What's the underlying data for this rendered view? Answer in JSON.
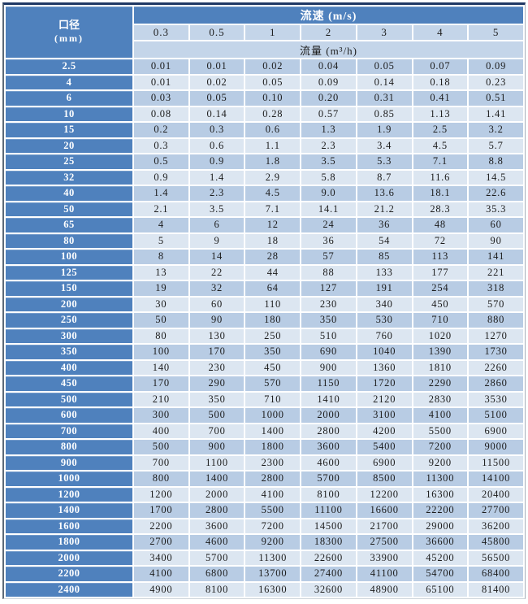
{
  "headers": {
    "corner_line1": "口径",
    "corner_line2": "(mm)",
    "velocity_band": "流速 (m/s)",
    "flow_band": "流量 (m³/h)"
  },
  "velocities": [
    "0.3",
    "0.5",
    "1",
    "2",
    "3",
    "4",
    "5"
  ],
  "rows": [
    {
      "diameter": "2.5",
      "values": [
        "0.01",
        "0.01",
        "0.02",
        "0.04",
        "0.05",
        "0.07",
        "0.09"
      ]
    },
    {
      "diameter": "4",
      "values": [
        "0.01",
        "0.02",
        "0.05",
        "0.09",
        "0.14",
        "0.18",
        "0.23"
      ]
    },
    {
      "diameter": "6",
      "values": [
        "0.03",
        "0.05",
        "0.10",
        "0.20",
        "0.31",
        "0.41",
        "0.51"
      ]
    },
    {
      "diameter": "10",
      "values": [
        "0.08",
        "0.14",
        "0.28",
        "0.57",
        "0.85",
        "1.13",
        "1.41"
      ]
    },
    {
      "diameter": "15",
      "values": [
        "0.2",
        "0.3",
        "0.6",
        "1.3",
        "1.9",
        "2.5",
        "3.2"
      ]
    },
    {
      "diameter": "20",
      "values": [
        "0.3",
        "0.6",
        "1.1",
        "2.3",
        "3.4",
        "4.5",
        "5.7"
      ]
    },
    {
      "diameter": "25",
      "values": [
        "0.5",
        "0.9",
        "1.8",
        "3.5",
        "5.3",
        "7.1",
        "8.8"
      ]
    },
    {
      "diameter": "32",
      "values": [
        "0.9",
        "1.4",
        "2.9",
        "5.8",
        "8.7",
        "11.6",
        "14.5"
      ]
    },
    {
      "diameter": "40",
      "values": [
        "1.4",
        "2.3",
        "4.5",
        "9.0",
        "13.6",
        "18.1",
        "22.6"
      ]
    },
    {
      "diameter": "50",
      "values": [
        "2.1",
        "3.5",
        "7.1",
        "14.1",
        "21.2",
        "28.3",
        "35.3"
      ]
    },
    {
      "diameter": "65",
      "values": [
        "4",
        "6",
        "12",
        "24",
        "36",
        "48",
        "60"
      ]
    },
    {
      "diameter": "80",
      "values": [
        "5",
        "9",
        "18",
        "36",
        "54",
        "72",
        "90"
      ]
    },
    {
      "diameter": "100",
      "values": [
        "8",
        "14",
        "28",
        "57",
        "85",
        "113",
        "141"
      ]
    },
    {
      "diameter": "125",
      "values": [
        "13",
        "22",
        "44",
        "88",
        "133",
        "177",
        "221"
      ]
    },
    {
      "diameter": "150",
      "values": [
        "19",
        "32",
        "64",
        "127",
        "191",
        "254",
        "318"
      ]
    },
    {
      "diameter": "200",
      "values": [
        "30",
        "60",
        "110",
        "230",
        "340",
        "450",
        "570"
      ]
    },
    {
      "diameter": "250",
      "values": [
        "50",
        "90",
        "180",
        "350",
        "530",
        "710",
        "880"
      ]
    },
    {
      "diameter": "300",
      "values": [
        "80",
        "130",
        "250",
        "510",
        "760",
        "1020",
        "1270"
      ]
    },
    {
      "diameter": "350",
      "values": [
        "100",
        "170",
        "350",
        "690",
        "1040",
        "1390",
        "1730"
      ]
    },
    {
      "diameter": "400",
      "values": [
        "140",
        "230",
        "450",
        "900",
        "1360",
        "1810",
        "2260"
      ]
    },
    {
      "diameter": "450",
      "values": [
        "170",
        "290",
        "570",
        "1150",
        "1720",
        "2290",
        "2860"
      ]
    },
    {
      "diameter": "500",
      "values": [
        "210",
        "350",
        "710",
        "1410",
        "2120",
        "2830",
        "3530"
      ]
    },
    {
      "diameter": "600",
      "values": [
        "300",
        "500",
        "1000",
        "2000",
        "3100",
        "4100",
        "5100"
      ]
    },
    {
      "diameter": "700",
      "values": [
        "400",
        "700",
        "1400",
        "2800",
        "4200",
        "5500",
        "6900"
      ]
    },
    {
      "diameter": "800",
      "values": [
        "500",
        "900",
        "1800",
        "3600",
        "5400",
        "7200",
        "9000"
      ]
    },
    {
      "diameter": "900",
      "values": [
        "700",
        "1100",
        "2300",
        "4600",
        "6900",
        "9200",
        "11500"
      ]
    },
    {
      "diameter": "1000",
      "values": [
        "800",
        "1400",
        "2800",
        "5700",
        "8500",
        "11300",
        "14100"
      ]
    },
    {
      "diameter": "1200",
      "values": [
        "1200",
        "2000",
        "4100",
        "8100",
        "12200",
        "16300",
        "20400"
      ]
    },
    {
      "diameter": "1400",
      "values": [
        "1700",
        "2800",
        "5500",
        "11100",
        "16600",
        "22200",
        "27700"
      ]
    },
    {
      "diameter": "1600",
      "values": [
        "2200",
        "3600",
        "7200",
        "14500",
        "21700",
        "29000",
        "36200"
      ]
    },
    {
      "diameter": "1800",
      "values": [
        "2700",
        "4600",
        "9200",
        "18300",
        "27500",
        "36600",
        "45800"
      ]
    },
    {
      "diameter": "2000",
      "values": [
        "3400",
        "5700",
        "11300",
        "22600",
        "33900",
        "45200",
        "56500"
      ]
    },
    {
      "diameter": "2200",
      "values": [
        "4100",
        "6800",
        "13700",
        "27400",
        "41100",
        "54700",
        "68400"
      ]
    },
    {
      "diameter": "2400",
      "values": [
        "4900",
        "8100",
        "16300",
        "32600",
        "48900",
        "65100",
        "81400"
      ]
    }
  ],
  "colors": {
    "accent": "#4f81bd",
    "row_medium": "#b8cce4",
    "row_light": "#dce6f1",
    "header_light": "#c4d5e9",
    "gridline": "#ffffff",
    "outer_border_top": "#1f3864"
  }
}
